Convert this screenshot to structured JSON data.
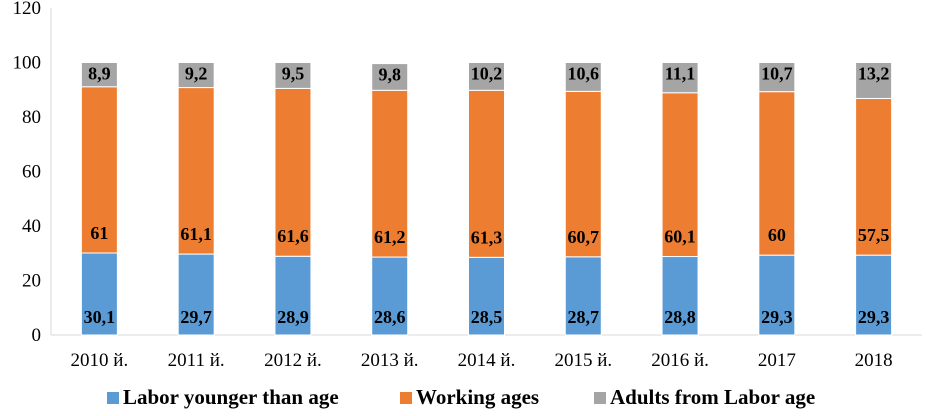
{
  "chart_data": {
    "type": "bar",
    "stacked": true,
    "categories": [
      "2010 й.",
      "2011 й.",
      "2012 й.",
      "2013 й.",
      "2014 й.",
      "2015 й.",
      "2016 й.",
      "2017",
      "2018"
    ],
    "series": [
      {
        "name": "Labor younger than age",
        "color": "#5b9bd5",
        "values": [
          30.1,
          29.7,
          28.9,
          28.6,
          28.5,
          28.7,
          28.8,
          29.3,
          29.3
        ],
        "labels": [
          "30,1",
          "29,7",
          "28,9",
          "28,6",
          "28,5",
          "28,7",
          "28,8",
          "29,3",
          "29,3"
        ]
      },
      {
        "name": "Working ages",
        "color": "#ed7d31",
        "values": [
          61,
          61.1,
          61.6,
          61.2,
          61.3,
          60.7,
          60.1,
          60,
          57.5
        ],
        "labels": [
          "61",
          "61,1",
          "61,6",
          "61,2",
          "61,3",
          "60,7",
          "60,1",
          "60",
          "57,5"
        ]
      },
      {
        "name": "Adults from Labor age",
        "color": "#a5a5a5",
        "values": [
          8.9,
          9.2,
          9.5,
          9.8,
          10.2,
          10.6,
          11.1,
          10.7,
          13.2
        ],
        "labels": [
          "8,9",
          "9,2",
          "9,5",
          "9,8",
          "10,2",
          "10,6",
          "11,1",
          "10,7",
          "13,2"
        ]
      }
    ],
    "y_ticks": [
      "0",
      "20",
      "40",
      "60",
      "80",
      "100",
      "120"
    ],
    "ylim": [
      0,
      120
    ],
    "grid": false,
    "legend_position": "bottom"
  }
}
